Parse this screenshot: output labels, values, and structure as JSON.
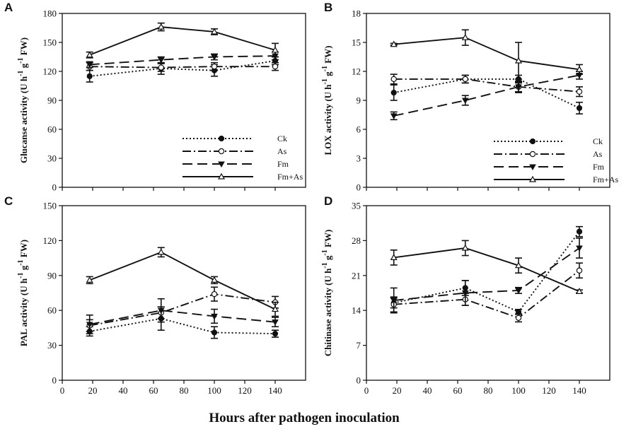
{
  "figure": {
    "xlabel": "Hours after pathogen inoculation"
  },
  "series_styles": [
    {
      "name": "Ck",
      "dash": "2,3",
      "marker": "circle-filled"
    },
    {
      "name": "As",
      "dash": "12,4,2,4",
      "marker": "circle-open"
    },
    {
      "name": "Fm",
      "dash": "14,7",
      "marker": "triangle-down-filled"
    },
    {
      "name": "Fm+As",
      "dash": "",
      "marker": "triangle-up-open"
    }
  ],
  "chart_data": [
    {
      "type": "line",
      "panel": "A",
      "ylabel": "Glucanse activity",
      "ylabel_unit": [
        "(U h",
        "-1",
        " g",
        "-1",
        " FW)"
      ],
      "ylim": [
        0,
        180
      ],
      "yticks": [
        0,
        30,
        60,
        90,
        120,
        150,
        180
      ],
      "xlim": [
        0,
        160
      ],
      "xticks": [
        0,
        20,
        40,
        60,
        80,
        100,
        120,
        140
      ],
      "show_xticks": false,
      "x": [
        18,
        65,
        100,
        140
      ],
      "legend_position": "bottom-right",
      "series": [
        {
          "name": "Ck",
          "values": [
            115,
            123,
            121,
            131
          ],
          "errors": [
            6,
            6,
            6,
            4
          ]
        },
        {
          "name": "As",
          "values": [
            125,
            124,
            125,
            125
          ],
          "errors": [
            4,
            4,
            4,
            4
          ]
        },
        {
          "name": "Fm",
          "values": [
            127,
            132,
            135,
            136
          ],
          "errors": [
            3,
            3,
            3,
            4
          ]
        },
        {
          "name": "Fm+As",
          "values": [
            137,
            166,
            161,
            142
          ],
          "errors": [
            3,
            4,
            3,
            7
          ]
        }
      ]
    },
    {
      "type": "line",
      "panel": "B",
      "ylabel": "LOX activity",
      "ylabel_unit": [
        "(U h",
        "-1",
        " g",
        "-1",
        " FW)"
      ],
      "ylim": [
        0,
        18
      ],
      "yticks": [
        0,
        3,
        6,
        9,
        12,
        15,
        18
      ],
      "xlim": [
        0,
        160
      ],
      "xticks": [
        0,
        20,
        40,
        60,
        80,
        100,
        120,
        140
      ],
      "show_xticks": false,
      "x": [
        18,
        65,
        100,
        140
      ],
      "legend_position": "bottom-right",
      "series": [
        {
          "name": "Ck",
          "values": [
            9.8,
            11.2,
            11.2,
            8.2
          ],
          "errors": [
            0.8,
            0.4,
            0.4,
            0.6
          ]
        },
        {
          "name": "As",
          "values": [
            11.2,
            11.2,
            10.4,
            9.9
          ],
          "errors": [
            0.5,
            0.4,
            0.5,
            0.5
          ]
        },
        {
          "name": "Fm",
          "values": [
            7.4,
            9.0,
            10.4,
            11.6
          ],
          "errors": [
            0.4,
            0.5,
            0.6,
            0.4
          ]
        },
        {
          "name": "Fm+As",
          "values": [
            14.8,
            15.5,
            13.1,
            12.2
          ],
          "errors": [
            0.1,
            0.8,
            1.9,
            0.5
          ]
        }
      ]
    },
    {
      "type": "line",
      "panel": "C",
      "ylabel": "PAL activity",
      "ylabel_unit": [
        "(U h",
        "-1",
        " g",
        "-1",
        " FW)"
      ],
      "ylim": [
        0,
        150
      ],
      "yticks": [
        0,
        30,
        60,
        90,
        120,
        150
      ],
      "xlim": [
        0,
        160
      ],
      "xticks": [
        0,
        20,
        40,
        60,
        80,
        100,
        120,
        140
      ],
      "show_xticks": true,
      "x": [
        18,
        65,
        100,
        140
      ],
      "series": [
        {
          "name": "Ck",
          "values": [
            42,
            53,
            41,
            40
          ],
          "errors": [
            4,
            10,
            5,
            3
          ]
        },
        {
          "name": "As",
          "values": [
            47,
            58,
            74,
            67
          ],
          "errors": [
            5,
            5,
            6,
            5
          ]
        },
        {
          "name": "Fm",
          "values": [
            48,
            60,
            55,
            50
          ],
          "errors": [
            8,
            10,
            6,
            4
          ]
        },
        {
          "name": "Fm+As",
          "values": [
            86,
            110,
            86,
            61
          ],
          "errors": [
            3,
            4,
            3,
            6
          ]
        }
      ]
    },
    {
      "type": "line",
      "panel": "D",
      "ylabel": "Chitinase activity",
      "ylabel_unit": [
        "(U h",
        "-1",
        " g",
        "-1",
        " FW)"
      ],
      "ylim": [
        0,
        35
      ],
      "yticks": [
        0,
        7,
        14,
        21,
        28,
        35
      ],
      "xlim": [
        0,
        160
      ],
      "xticks": [
        0,
        20,
        40,
        60,
        80,
        100,
        120,
        140
      ],
      "show_xticks": true,
      "x": [
        18,
        65,
        100,
        140
      ],
      "series": [
        {
          "name": "Ck",
          "values": [
            15.5,
            18.5,
            13.7,
            29.8
          ],
          "errors": [
            1.0,
            1.5,
            0.5,
            1.0
          ]
        },
        {
          "name": "As",
          "values": [
            15.2,
            16.2,
            12.5,
            22.0
          ],
          "errors": [
            1.5,
            1.2,
            0.8,
            1.5
          ]
        },
        {
          "name": "Fm",
          "values": [
            16.0,
            17.5,
            18.0,
            26.5
          ],
          "errors": [
            2.5,
            2.5,
            0.6,
            2.0
          ]
        },
        {
          "name": "Fm+As",
          "values": [
            24.6,
            26.5,
            23.0,
            17.8
          ],
          "errors": [
            1.5,
            1.5,
            1.5,
            0.3
          ]
        }
      ]
    }
  ]
}
